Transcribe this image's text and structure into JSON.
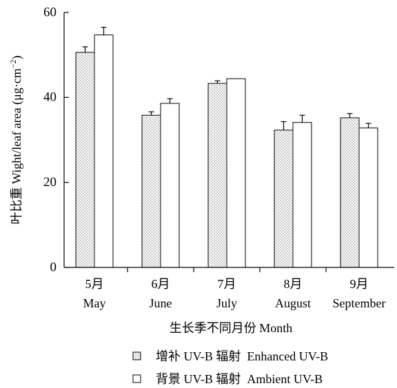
{
  "chart_data": {
    "type": "bar",
    "categories": [
      "5月",
      "6月",
      "7月",
      "8月",
      "9月"
    ],
    "category_sublabels": [
      "May",
      "June",
      "July",
      "August",
      "September"
    ],
    "series": [
      {
        "name": "增补 UV-B 辐射  Enhanced UV-B",
        "pattern": "dotted",
        "values": [
          50.6,
          35.8,
          43.3,
          32.3,
          35.2
        ],
        "errors": [
          1.3,
          0.8,
          0.6,
          2.0,
          1.0
        ]
      },
      {
        "name": "背景 UV-B 辐射  Ambient UV-B",
        "pattern": "white",
        "values": [
          54.7,
          38.6,
          44.4,
          34.1,
          32.8
        ],
        "errors": [
          1.8,
          1.1,
          0,
          1.7,
          1.1
        ]
      }
    ],
    "yticks": [
      "0",
      "20",
      "40",
      "60"
    ],
    "ylim": [
      0,
      60
    ],
    "xlabel": "生长季不同月份 Month",
    "ylabel": "叶比重 Wight/leaf area (μg·cm",
    "ylabel_superscript": "−2",
    "ylabel_close": ")",
    "legend_position": "bottom",
    "grid": false,
    "colors": {
      "bar_fill_white": "#ffffff",
      "bar_stroke": "#000000",
      "dot": "#7a7a7a"
    }
  }
}
